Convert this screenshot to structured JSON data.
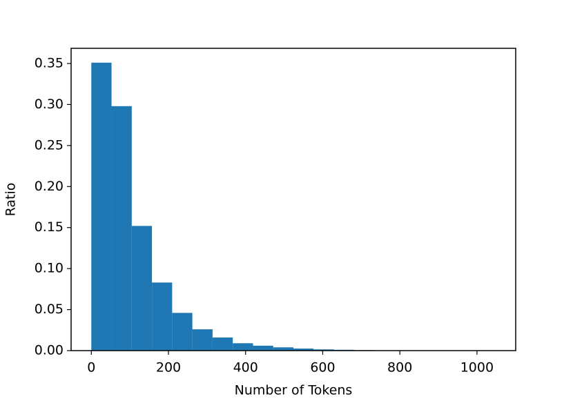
{
  "chart_data": {
    "type": "histogram",
    "x_label": "Number of Tokens",
    "y_label": "Ratio",
    "color": "#1f77b4",
    "bins": [
      0,
      52.4,
      104.8,
      157.2,
      209.6,
      262,
      314.4,
      366.8,
      419.2,
      471.6,
      524,
      576.4,
      628.8,
      681.2,
      733.6,
      786,
      838.4,
      890.8,
      943.2,
      995.6,
      1048
    ],
    "values": [
      0.351,
      0.298,
      0.152,
      0.083,
      0.046,
      0.026,
      0.016,
      0.009,
      0.006,
      0.004,
      0.0025,
      0.0015,
      0.001,
      0.0006,
      0.0004,
      0.0003,
      0.0002,
      0.0001,
      0.0001,
      0.0001
    ],
    "xlim": [
      -52.4,
      1100.4
    ],
    "ylim": [
      0,
      0.3685
    ],
    "xticks": [
      0,
      200,
      400,
      600,
      800,
      1000
    ],
    "yticks": [
      {
        "value": 0,
        "label": "0.00"
      },
      {
        "value": 0.05,
        "label": "0.05"
      },
      {
        "value": 0.1,
        "label": "0.10"
      },
      {
        "value": 0.15,
        "label": "0.15"
      },
      {
        "value": 0.2,
        "label": "0.20"
      },
      {
        "value": 0.25,
        "label": "0.25"
      },
      {
        "value": 0.3,
        "label": "0.30"
      },
      {
        "value": 0.35,
        "label": "0.35"
      }
    ]
  }
}
